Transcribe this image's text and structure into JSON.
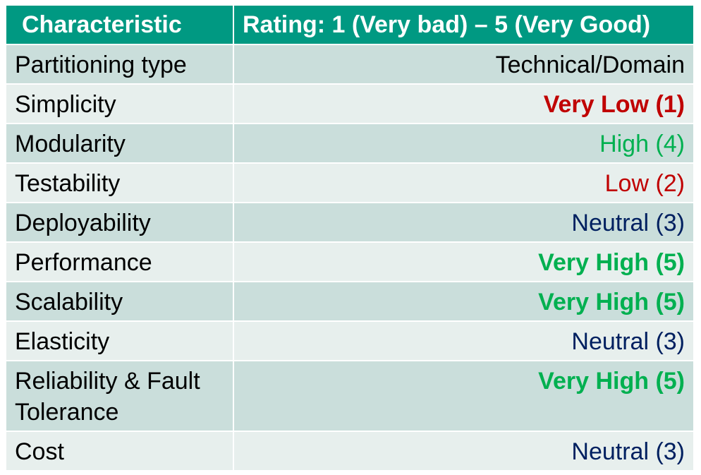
{
  "header": {
    "characteristic": "Characteristic",
    "rating": "Rating: 1 (Very bad) – 5 (Very Good)"
  },
  "colors": {
    "header_bg": "#009982",
    "row_dark": "#cadedb",
    "row_light": "#e7efed",
    "very_low_red": "#c00000",
    "low_red": "#c00000",
    "high_green": "#00b050",
    "neutral_navy": "#002060"
  },
  "rows": [
    {
      "characteristic": "Partitioning type",
      "rating": "Technical/Domain",
      "color": "#000000",
      "bold": false
    },
    {
      "characteristic": "Simplicity",
      "rating": "Very Low (1)",
      "color": "#c00000",
      "bold": true
    },
    {
      "characteristic": "Modularity",
      "rating": "High (4)",
      "color": "#00b050",
      "bold": false
    },
    {
      "characteristic": "Testability",
      "rating": "Low (2)",
      "color": "#c00000",
      "bold": false
    },
    {
      "characteristic": "Deployability",
      "rating": "Neutral (3)",
      "color": "#002060",
      "bold": false
    },
    {
      "characteristic": "Performance",
      "rating": "Very High (5)",
      "color": "#00b050",
      "bold": true
    },
    {
      "characteristic": "Scalability",
      "rating": "Very High (5)",
      "color": "#00b050",
      "bold": true
    },
    {
      "characteristic": "Elasticity",
      "rating": "Neutral (3)",
      "color": "#002060",
      "bold": false
    },
    {
      "characteristic": "Reliability & Fault Tolerance",
      "rating": "Very High (5)",
      "color": "#00b050",
      "bold": true
    },
    {
      "characteristic": "Cost",
      "rating": "Neutral (3)",
      "color": "#002060",
      "bold": false
    }
  ]
}
